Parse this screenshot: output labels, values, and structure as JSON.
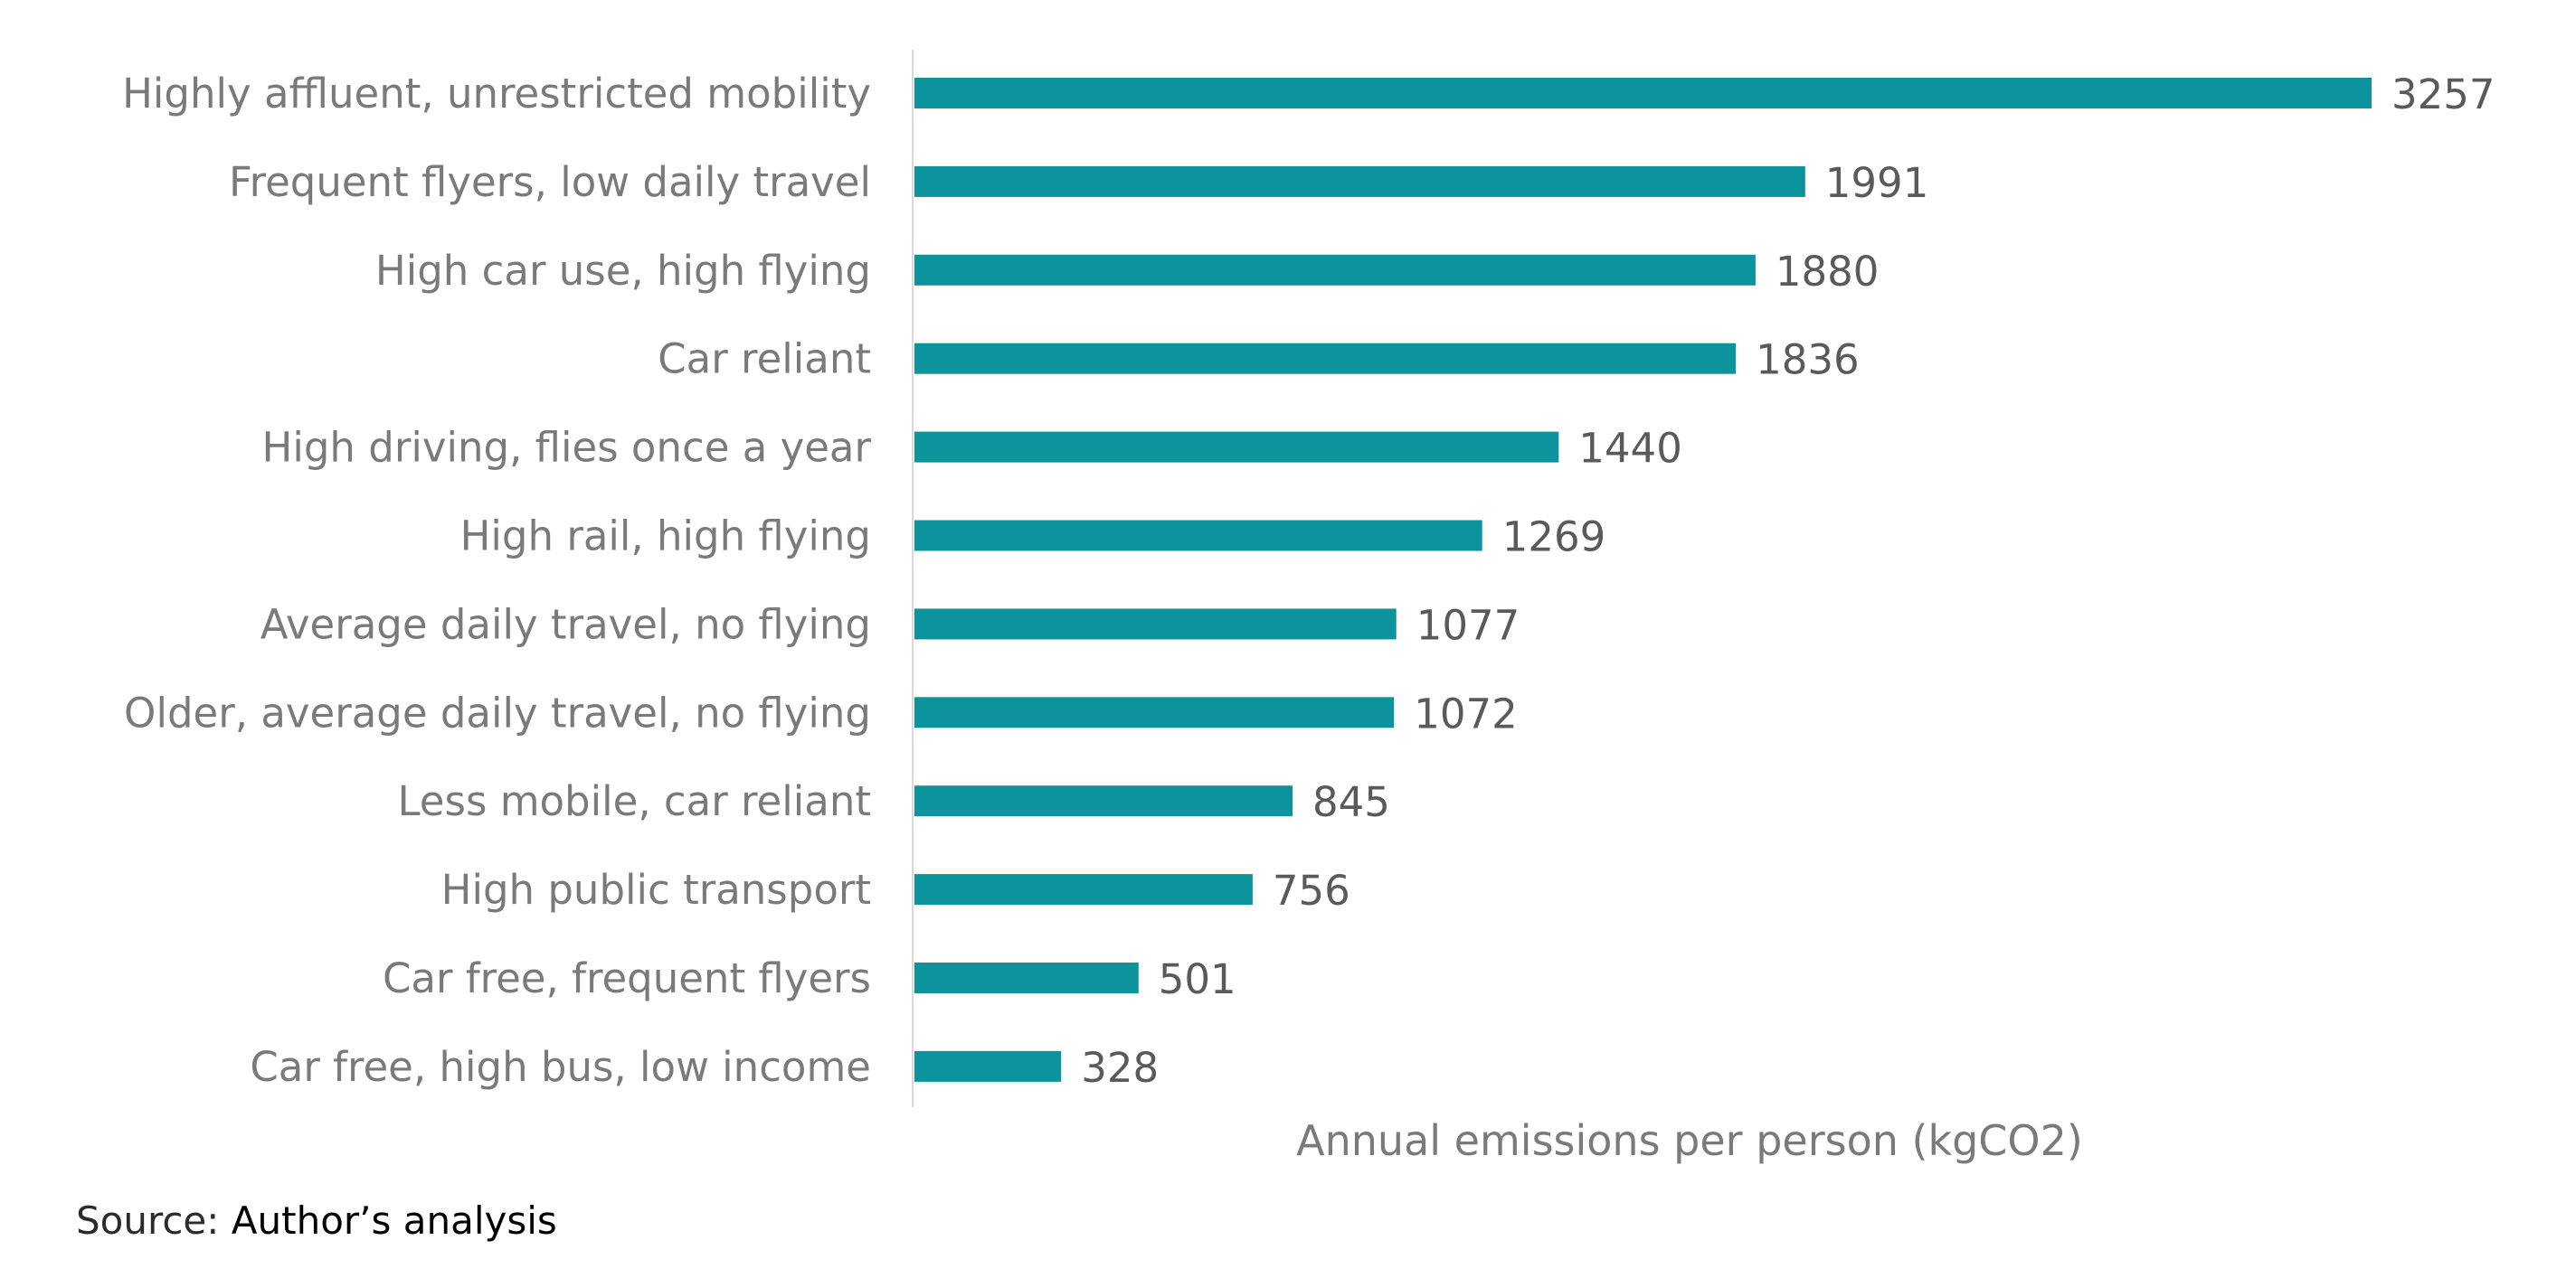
{
  "chart_data": {
    "type": "bar",
    "orientation": "horizontal",
    "categories": [
      "Highly affluent, unrestricted mobility",
      "Frequent flyers, low daily travel",
      "High car use, high flying",
      "Car reliant",
      "High driving, flies once a year",
      "High rail, high flying",
      "Average daily travel, no flying",
      "Older, average daily travel, no flying",
      "Less mobile, car reliant",
      "High public transport",
      "Car free, frequent flyers",
      "Car free, high bus, low income"
    ],
    "values": [
      3257,
      1991,
      1880,
      1836,
      1440,
      1269,
      1077,
      1072,
      845,
      756,
      501,
      328
    ],
    "xlabel": "Annual emissions per person (kgCO2)",
    "ylabel": "",
    "xlim": [
      0,
      3257
    ],
    "grid": false,
    "legend": "none",
    "bar_color": "#0c939c",
    "axis_color": "#d9d9d9"
  },
  "source": {
    "prefix": "Source:",
    "text": "Author’s analysis"
  }
}
